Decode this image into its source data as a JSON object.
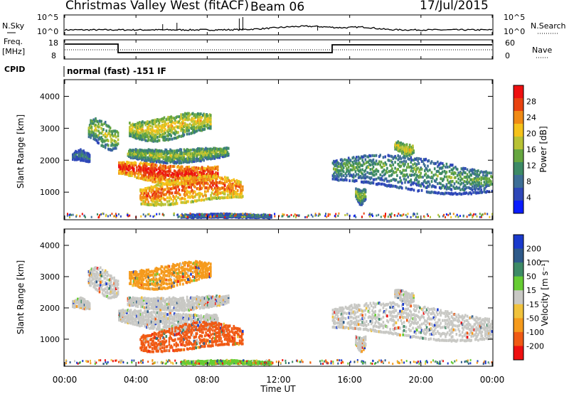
{
  "header": {
    "station": "Christmas Valley West (fitACF)",
    "beam": "Beam 06",
    "date": "17/Jul/2015"
  },
  "noise_panel": {
    "left_label": "N.Sky",
    "right_label": "N.Search",
    "ticks_left": [
      "10^5",
      "10^0"
    ],
    "ticks_right": [
      "10^5",
      "10^0"
    ]
  },
  "freq_panel": {
    "left_label_top": "Freq.",
    "left_label_unit": "[MHz]",
    "right_label": "Nave",
    "ticks_left": [
      "18",
      "8"
    ],
    "ticks_right": [
      "60",
      "0"
    ]
  },
  "cpid": {
    "label": "CPID",
    "value": "normal (fast) -151 IF"
  },
  "time_axis": {
    "ticks": [
      "00:00",
      "04:00",
      "08:00",
      "12:00",
      "16:00",
      "20:00",
      "00:00"
    ],
    "label": "Time UT"
  },
  "chart_data": [
    {
      "type": "heatmap",
      "name": "power",
      "ylabel": "Slant Range [km]",
      "ylim": [
        180,
        4500
      ],
      "yticks": [
        "1000",
        "2000",
        "3000",
        "4000"
      ],
      "colorbar_label": "Power [dB]",
      "colorbar_ticks": [
        "4",
        "8",
        "12",
        "16",
        "20",
        "24",
        "28"
      ],
      "colors": [
        "#0a1cff",
        "#2e47b8",
        "#3d6e96",
        "#3d8a66",
        "#66a640",
        "#b8c234",
        "#f5c21a",
        "#f08a14",
        "#e8420f",
        "#ee1010"
      ],
      "echo_regions": [
        {
          "t": [
            0.4,
            1.4
          ],
          "r": [
            1950,
            2300
          ],
          "level": 3
        },
        {
          "t": [
            1.3,
            3.0
          ],
          "r": [
            2400,
            3300
          ],
          "level": 5
        },
        {
          "t": [
            3.0,
            8.6
          ],
          "r": [
            1350,
            2000
          ],
          "level": 9
        },
        {
          "t": [
            3.5,
            9.2
          ],
          "r": [
            2000,
            2450
          ],
          "level": 5
        },
        {
          "t": [
            3.6,
            8.2
          ],
          "r": [
            2700,
            3500
          ],
          "level": 6
        },
        {
          "t": [
            4.2,
            10.0
          ],
          "r": [
            600,
            1500
          ],
          "level": 8
        },
        {
          "t": [
            6.5,
            11.6
          ],
          "r": [
            200,
            300
          ],
          "level": 3
        },
        {
          "t": [
            15.0,
            24.0
          ],
          "r": [
            1000,
            2150
          ],
          "level": 4
        },
        {
          "t": [
            18.5,
            19.6
          ],
          "r": [
            2200,
            2600
          ],
          "level": 6
        },
        {
          "t": [
            16.3,
            16.9
          ],
          "r": [
            700,
            1200
          ],
          "level": 5
        }
      ]
    },
    {
      "type": "heatmap",
      "name": "velocity",
      "ylabel": "Slant Range [km]",
      "ylim": [
        180,
        4500
      ],
      "yticks": [
        "1000",
        "2000",
        "3000",
        "4000"
      ],
      "colorbar_label": "Velocity [m s⁻¹]",
      "colorbar_ticks": [
        "-200",
        "-100",
        "-50",
        "-15",
        "15",
        "50",
        "100",
        "200"
      ],
      "colors": [
        "#ee1010",
        "#f05a14",
        "#f59a1c",
        "#f0c23c",
        "#c8c8c4",
        "#66cc33",
        "#3d8a66",
        "#2e5a8a",
        "#1a3acc"
      ],
      "echo_regions": [
        {
          "t": [
            0.4,
            1.4
          ],
          "r": [
            1950,
            2300
          ],
          "level": 4
        },
        {
          "t": [
            1.3,
            3.0
          ],
          "r": [
            2400,
            3300
          ],
          "level": 4
        },
        {
          "t": [
            3.0,
            8.6
          ],
          "r": [
            1350,
            2000
          ],
          "level": 4
        },
        {
          "t": [
            3.5,
            9.2
          ],
          "r": [
            2000,
            2450
          ],
          "level": 4
        },
        {
          "t": [
            3.6,
            8.2
          ],
          "r": [
            2700,
            3500
          ],
          "level": 2
        },
        {
          "t": [
            4.2,
            10.0
          ],
          "r": [
            600,
            1500
          ],
          "level": 1
        },
        {
          "t": [
            6.5,
            11.6
          ],
          "r": [
            200,
            300
          ],
          "level": 5
        },
        {
          "t": [
            15.0,
            24.0
          ],
          "r": [
            1000,
            2150
          ],
          "level": 4
        },
        {
          "t": [
            18.5,
            19.6
          ],
          "r": [
            2200,
            2600
          ],
          "level": 4
        },
        {
          "t": [
            16.3,
            16.9
          ],
          "r": [
            700,
            1200
          ],
          "level": 4
        }
      ]
    }
  ]
}
